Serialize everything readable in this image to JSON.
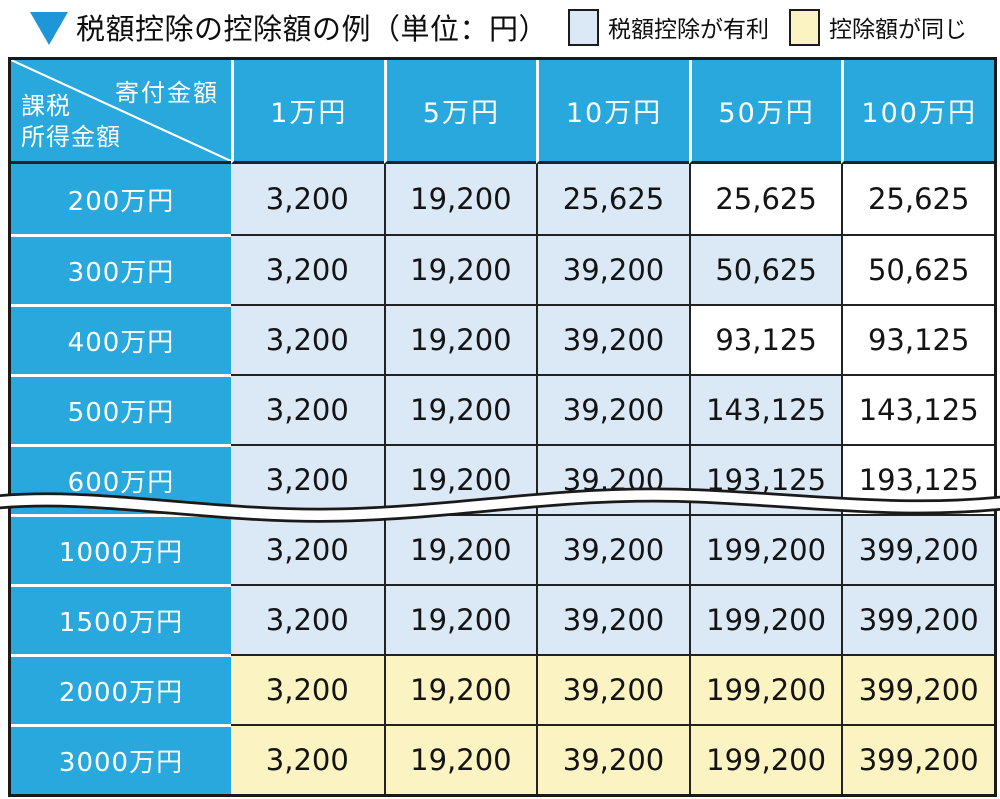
{
  "title": {
    "marker_icon": "down-triangle",
    "text": "税額控除の控除額の例（単位：円）"
  },
  "legend": {
    "items": [
      {
        "label": "税額控除が有利",
        "swatch_color": "#dbe8f5",
        "meaning": "blue"
      },
      {
        "label": "控除額が同じ",
        "swatch_color": "#fbf3c2",
        "meaning": "yellow"
      }
    ]
  },
  "table": {
    "corner": {
      "column_axis_label": "寄付金額",
      "row_axis_label_line1": "課税",
      "row_axis_label_line2": "所得金額"
    },
    "column_headers": [
      "1万円",
      "5万円",
      "10万円",
      "50万円",
      "100万円"
    ],
    "rows": [
      {
        "label": "200万円",
        "values": [
          "3,200",
          "19,200",
          "25,625",
          "25,625",
          "25,625"
        ],
        "bg": [
          "blue",
          "blue",
          "blue",
          "white",
          "white"
        ]
      },
      {
        "label": "300万円",
        "values": [
          "3,200",
          "19,200",
          "39,200",
          "50,625",
          "50,625"
        ],
        "bg": [
          "blue",
          "blue",
          "blue",
          "blue",
          "white"
        ]
      },
      {
        "label": "400万円",
        "values": [
          "3,200",
          "19,200",
          "39,200",
          "93,125",
          "93,125"
        ],
        "bg": [
          "blue",
          "blue",
          "blue",
          "white",
          "white"
        ]
      },
      {
        "label": "500万円",
        "values": [
          "3,200",
          "19,200",
          "39,200",
          "143,125",
          "143,125"
        ],
        "bg": [
          "blue",
          "blue",
          "blue",
          "blue",
          "white"
        ]
      },
      {
        "label": "600万円",
        "values": [
          "3,200",
          "19,200",
          "39,200",
          "193,125",
          "193,125"
        ],
        "bg": [
          "blue",
          "blue",
          "blue",
          "blue",
          "white"
        ]
      },
      {
        "label": "1000万円",
        "values": [
          "3,200",
          "19,200",
          "39,200",
          "199,200",
          "399,200"
        ],
        "bg": [
          "blue",
          "blue",
          "blue",
          "blue",
          "blue"
        ]
      },
      {
        "label": "1500万円",
        "values": [
          "3,200",
          "19,200",
          "39,200",
          "199,200",
          "399,200"
        ],
        "bg": [
          "blue",
          "blue",
          "blue",
          "blue",
          "blue"
        ]
      },
      {
        "label": "2000万円",
        "values": [
          "3,200",
          "19,200",
          "39,200",
          "199,200",
          "399,200"
        ],
        "bg": [
          "yellow",
          "yellow",
          "yellow",
          "yellow",
          "yellow"
        ]
      },
      {
        "label": "3000万円",
        "values": [
          "3,200",
          "19,200",
          "39,200",
          "199,200",
          "399,200"
        ],
        "bg": [
          "yellow",
          "yellow",
          "yellow",
          "yellow",
          "yellow"
        ]
      }
    ],
    "omission_break_after_row_index": 4
  },
  "colors": {
    "header_blue": "#29a8dd",
    "favorable_blue": "#dbe8f5",
    "same_yellow": "#fbf3c2",
    "grid_line": "#222222",
    "title_triangle_blue": "#1f96d8"
  },
  "chart_data": {
    "type": "table",
    "title": "税額控除の控除額の例（単位：円）",
    "column_axis": "寄付金額",
    "row_axis": "課税所得金額",
    "columns": [
      "1万円",
      "5万円",
      "10万円",
      "50万円",
      "100万円"
    ],
    "row_labels": [
      "200万円",
      "300万円",
      "400万円",
      "500万円",
      "600万円",
      "1000万円",
      "1500万円",
      "2000万円",
      "3000万円"
    ],
    "values": [
      [
        3200,
        19200,
        25625,
        25625,
        25625
      ],
      [
        3200,
        19200,
        39200,
        50625,
        50625
      ],
      [
        3200,
        19200,
        39200,
        93125,
        93125
      ],
      [
        3200,
        19200,
        39200,
        143125,
        143125
      ],
      [
        3200,
        19200,
        39200,
        193125,
        193125
      ],
      [
        3200,
        19200,
        39200,
        199200,
        399200
      ],
      [
        3200,
        19200,
        39200,
        199200,
        399200
      ],
      [
        3200,
        19200,
        39200,
        199200,
        399200
      ],
      [
        3200,
        19200,
        39200,
        199200,
        399200
      ]
    ],
    "cell_status": [
      [
        "税額控除が有利",
        "税額控除が有利",
        "税額控除が有利",
        "plain",
        "plain"
      ],
      [
        "税額控除が有利",
        "税額控除が有利",
        "税額控除が有利",
        "税額控除が有利",
        "plain"
      ],
      [
        "税額控除が有利",
        "税額控除が有利",
        "税額控除が有利",
        "plain",
        "plain"
      ],
      [
        "税額控除が有利",
        "税額控除が有利",
        "税額控除が有利",
        "税額控除が有利",
        "plain"
      ],
      [
        "税額控除が有利",
        "税額控除が有利",
        "税額控除が有利",
        "税額控除が有利",
        "plain"
      ],
      [
        "税額控除が有利",
        "税額控除が有利",
        "税額控除が有利",
        "税額控除が有利",
        "税額控除が有利"
      ],
      [
        "税額控除が有利",
        "税額控除が有利",
        "税額控除が有利",
        "税額控除が有利",
        "税額控除が有利"
      ],
      [
        "控除額が同じ",
        "控除額が同じ",
        "控除額が同じ",
        "控除額が同じ",
        "控除額が同じ"
      ],
      [
        "控除額が同じ",
        "控除額が同じ",
        "控除額が同じ",
        "控除額が同じ",
        "控除額が同じ"
      ]
    ],
    "notes": "Wavy double rule between 600万円 and 1000万円 rows indicates omitted rows."
  }
}
